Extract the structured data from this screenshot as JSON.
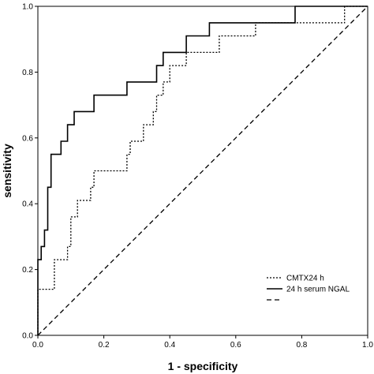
{
  "chart_data": {
    "type": "line",
    "title": "",
    "xlabel": "1 - specificity",
    "ylabel": "sensitivity",
    "xlim": [
      0,
      1
    ],
    "ylim": [
      0,
      1
    ],
    "x_ticks": [
      "0.0",
      "0.2",
      "0.4",
      "0.6",
      "0.8",
      "1.0"
    ],
    "y_ticks": [
      "0.0",
      "0.2",
      "0.4",
      "0.6",
      "0.8",
      "1.0"
    ],
    "grid": false,
    "legend_position": "bottom-right",
    "series": [
      {
        "name": "CMTX24 h",
        "style": "dotted",
        "color": "#000000",
        "points": [
          [
            0.0,
            0.0
          ],
          [
            0.0,
            0.14
          ],
          [
            0.05,
            0.14
          ],
          [
            0.05,
            0.23
          ],
          [
            0.09,
            0.23
          ],
          [
            0.09,
            0.27
          ],
          [
            0.1,
            0.27
          ],
          [
            0.1,
            0.36
          ],
          [
            0.12,
            0.36
          ],
          [
            0.12,
            0.41
          ],
          [
            0.16,
            0.41
          ],
          [
            0.16,
            0.45
          ],
          [
            0.17,
            0.45
          ],
          [
            0.17,
            0.5
          ],
          [
            0.27,
            0.5
          ],
          [
            0.27,
            0.55
          ],
          [
            0.28,
            0.55
          ],
          [
            0.28,
            0.59
          ],
          [
            0.32,
            0.59
          ],
          [
            0.32,
            0.64
          ],
          [
            0.35,
            0.64
          ],
          [
            0.35,
            0.68
          ],
          [
            0.36,
            0.68
          ],
          [
            0.36,
            0.73
          ],
          [
            0.38,
            0.73
          ],
          [
            0.38,
            0.77
          ],
          [
            0.4,
            0.77
          ],
          [
            0.4,
            0.82
          ],
          [
            0.45,
            0.82
          ],
          [
            0.45,
            0.86
          ],
          [
            0.55,
            0.86
          ],
          [
            0.55,
            0.91
          ],
          [
            0.66,
            0.91
          ],
          [
            0.66,
            0.95
          ],
          [
            0.93,
            0.95
          ],
          [
            0.93,
            1.0
          ],
          [
            1.0,
            1.0
          ]
        ]
      },
      {
        "name": "24 h serum NGAL",
        "style": "solid",
        "color": "#000000",
        "points": [
          [
            0.0,
            0.0
          ],
          [
            0.0,
            0.23
          ],
          [
            0.01,
            0.23
          ],
          [
            0.01,
            0.27
          ],
          [
            0.02,
            0.27
          ],
          [
            0.02,
            0.32
          ],
          [
            0.03,
            0.32
          ],
          [
            0.03,
            0.45
          ],
          [
            0.04,
            0.45
          ],
          [
            0.04,
            0.55
          ],
          [
            0.07,
            0.55
          ],
          [
            0.07,
            0.59
          ],
          [
            0.09,
            0.59
          ],
          [
            0.09,
            0.64
          ],
          [
            0.11,
            0.64
          ],
          [
            0.11,
            0.68
          ],
          [
            0.17,
            0.68
          ],
          [
            0.17,
            0.73
          ],
          [
            0.27,
            0.73
          ],
          [
            0.27,
            0.77
          ],
          [
            0.36,
            0.77
          ],
          [
            0.36,
            0.82
          ],
          [
            0.38,
            0.82
          ],
          [
            0.38,
            0.86
          ],
          [
            0.45,
            0.86
          ],
          [
            0.45,
            0.91
          ],
          [
            0.52,
            0.91
          ],
          [
            0.52,
            0.95
          ],
          [
            0.78,
            0.95
          ],
          [
            0.78,
            1.0
          ],
          [
            1.0,
            1.0
          ]
        ]
      },
      {
        "name": "",
        "style": "dashed",
        "color": "#000000",
        "points": [
          [
            0.0,
            0.0
          ],
          [
            1.0,
            1.0
          ]
        ]
      }
    ]
  }
}
